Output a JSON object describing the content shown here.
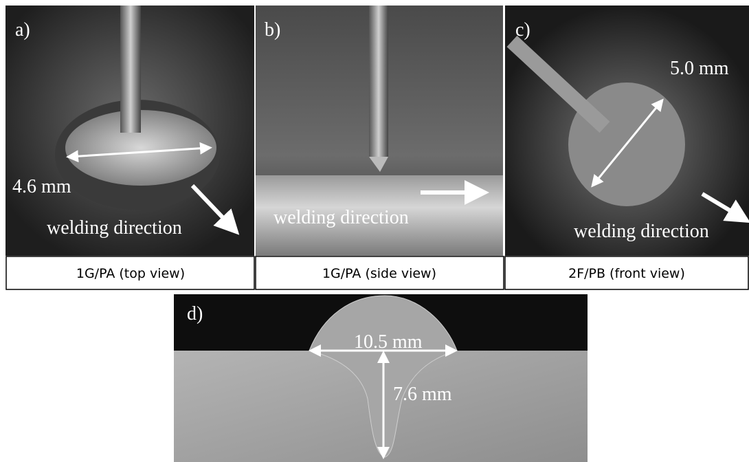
{
  "panels": [
    {
      "label": "a)",
      "measure": "4.6 mm",
      "direction": "welding direction",
      "caption": "1G/PA (top view)"
    },
    {
      "label": "b)",
      "direction": "welding direction",
      "caption": "1G/PA (side view)"
    },
    {
      "label": "c)",
      "measure": "5.0 mm",
      "direction": "welding direction",
      "caption": "2F/PB (front view)"
    },
    {
      "label": "d)",
      "width": "10.5 mm",
      "depth": "7.6 mm"
    }
  ]
}
